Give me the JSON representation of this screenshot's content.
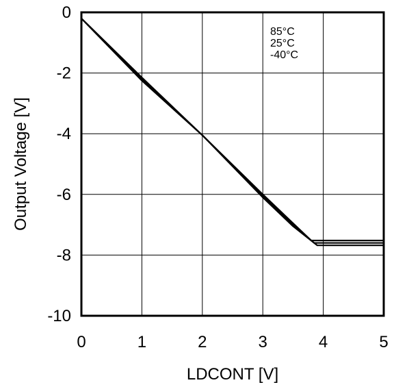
{
  "chart_data": {
    "type": "line",
    "title": "",
    "xlabel": "LDCONT [V]",
    "ylabel": "Output Voltage [V]",
    "xlim": [
      0,
      5
    ],
    "ylim": [
      -10,
      0
    ],
    "xticks": [
      "0",
      "1",
      "2",
      "3",
      "4",
      "5"
    ],
    "yticks": [
      "0",
      "-2",
      "-4",
      "-6",
      "-8",
      "-10"
    ],
    "grid": true,
    "legend": {
      "placement": "top-right",
      "entries": [
        "85°C",
        "25°C",
        "-40°C"
      ]
    },
    "series": [
      {
        "name": "85°C",
        "x": [
          0,
          1,
          2,
          3,
          3.5,
          3.8,
          5
        ],
        "y": [
          -0.2,
          -2.15,
          -4.05,
          -6.0,
          -6.95,
          -7.52,
          -7.52
        ]
      },
      {
        "name": "25°C",
        "x": [
          0,
          1,
          2,
          3,
          3.5,
          3.85,
          5
        ],
        "y": [
          -0.2,
          -2.2,
          -4.05,
          -6.05,
          -7.0,
          -7.6,
          -7.6
        ]
      },
      {
        "name": "-40°C",
        "x": [
          0,
          1,
          2,
          3,
          3.5,
          3.9,
          5
        ],
        "y": [
          -0.2,
          -2.25,
          -4.05,
          -6.1,
          -7.05,
          -7.68,
          -7.68
        ]
      }
    ]
  }
}
